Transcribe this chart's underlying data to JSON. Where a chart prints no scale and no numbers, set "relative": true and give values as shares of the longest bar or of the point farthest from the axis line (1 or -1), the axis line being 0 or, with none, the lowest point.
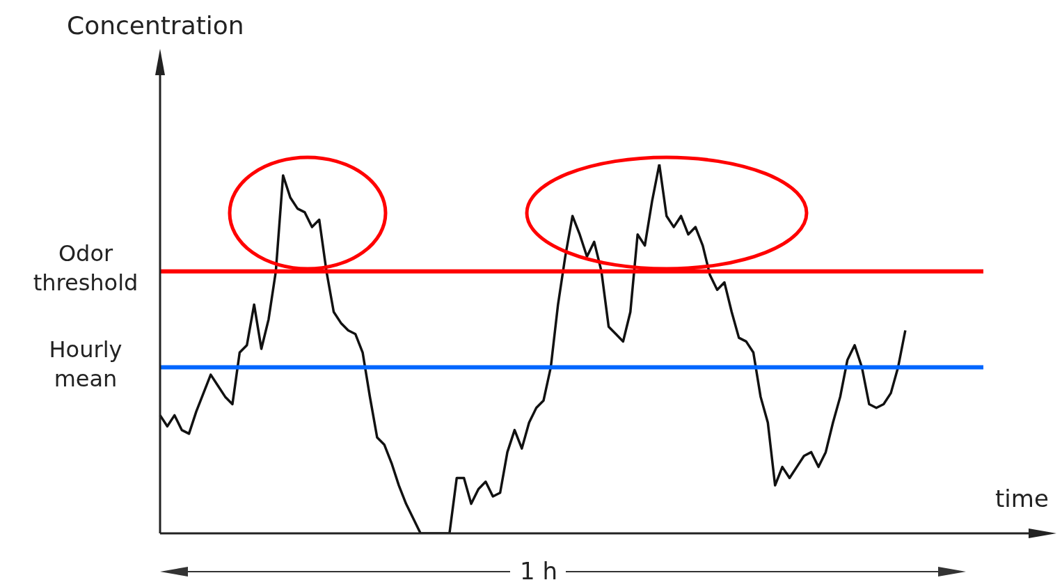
{
  "chart_data": {
    "type": "line",
    "relative": true,
    "ylabel": "Concentration",
    "xlabel": "time",
    "annotations": [
      "1 h"
    ],
    "marker": "none",
    "line_style": "solid",
    "categories": [
      null,
      null,
      null,
      null,
      null,
      null,
      null,
      null,
      null,
      null,
      null,
      null,
      null,
      null,
      null,
      null,
      null,
      null,
      null,
      null,
      null,
      null,
      null,
      null,
      null,
      null,
      null,
      null,
      null,
      null,
      null,
      null,
      null,
      null,
      null,
      null,
      null,
      null,
      null,
      null,
      null,
      null,
      null,
      null,
      null,
      null,
      null,
      null,
      null,
      null,
      null,
      null,
      null,
      null,
      null,
      null,
      null,
      null,
      null,
      null,
      null,
      null,
      null,
      null,
      null,
      null,
      null,
      null,
      null,
      null,
      null,
      null,
      null,
      null,
      null,
      null,
      null,
      null,
      null,
      null,
      null,
      null,
      null,
      null,
      null,
      null,
      null,
      null,
      null,
      null,
      null,
      null,
      null,
      null,
      null,
      null,
      null,
      null,
      null,
      null,
      null,
      null,
      null,
      null,
      null,
      null,
      null,
      null,
      null,
      null,
      null,
      null,
      null,
      null,
      null,
      null,
      null,
      null,
      null,
      null,
      null,
      null
    ],
    "series": [
      {
        "color": "#111111",
        "values": [
          0.32,
          0.29,
          0.32,
          0.28,
          0.27,
          0.33,
          0.38,
          0.43,
          0.4,
          0.37,
          0.35,
          0.49,
          0.51,
          0.62,
          0.5,
          0.58,
          0.71,
          0.97,
          0.91,
          0.88,
          0.87,
          0.83,
          0.85,
          0.71,
          0.6,
          0.57,
          0.55,
          0.54,
          0.49,
          0.37,
          0.26,
          0.24,
          0.19,
          0.13,
          0.08,
          0.04,
          0,
          0,
          0,
          0,
          0,
          0.15,
          0.15,
          0.08,
          0.12,
          0.14,
          0.1,
          0.11,
          0.22,
          0.28,
          0.23,
          0.3,
          0.34,
          0.36,
          0.45,
          0.62,
          0.75,
          0.86,
          0.81,
          0.75,
          0.79,
          0.71,
          0.56,
          0.54,
          0.52,
          0.6,
          0.81,
          0.78,
          0.9,
          1,
          0.86,
          0.83,
          0.86,
          0.81,
          0.83,
          0.78,
          0.7,
          0.66,
          0.68,
          0.6,
          0.53,
          0.52,
          0.49,
          0.37,
          0.3,
          0.13,
          0.18,
          0.15,
          0.18,
          0.21,
          0.22,
          0.18,
          0.22,
          0.3,
          0.37,
          0.47,
          0.51,
          0.45,
          0.35,
          0.34,
          0.35,
          0.38,
          0.45,
          0.55,
          null,
          null,
          null,
          null,
          null,
          null,
          null,
          null,
          null,
          null,
          null,
          null,
          null,
          null,
          null,
          null,
          null,
          null
        ]
      }
    ],
    "ref_lines": [
      {
        "axis": "y",
        "value": 0.71,
        "label": "Odor threshold",
        "color": "#ff0000"
      },
      {
        "axis": "y",
        "value": 0.45,
        "label": "Hourly mean",
        "color": "#0066ff"
      }
    ]
  }
}
